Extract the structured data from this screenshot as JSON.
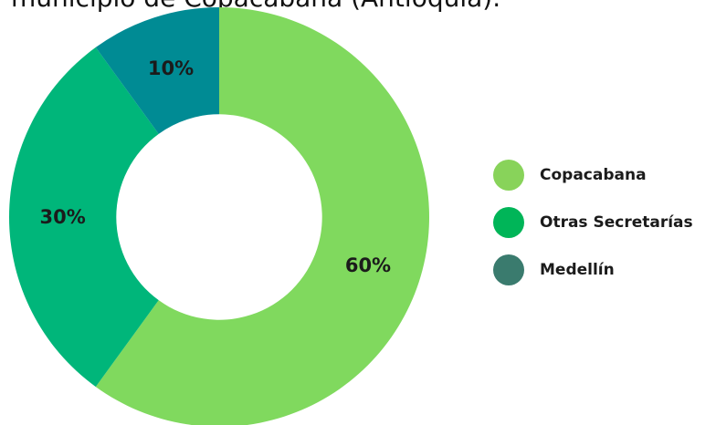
{
  "chart_data": {
    "type": "pie",
    "title": "municipio de Copacabana (Antioquia).",
    "slices": [
      {
        "label": "Copacabana",
        "value": 60,
        "display": "60%",
        "color": "#80d95e",
        "legend_color": "#88d35a"
      },
      {
        "label": "Otras Secretarías",
        "value": 30,
        "display": "30%",
        "color": "#00b67a",
        "legend_color": "#00b558"
      },
      {
        "label": "Medellín",
        "value": 10,
        "display": "10%",
        "color": "#008b94",
        "legend_color": "#3a7b6e"
      }
    ],
    "legend_position": "right",
    "start_angle_deg": 0,
    "direction": "clockwise",
    "inner_radius_ratio": 0.49
  }
}
